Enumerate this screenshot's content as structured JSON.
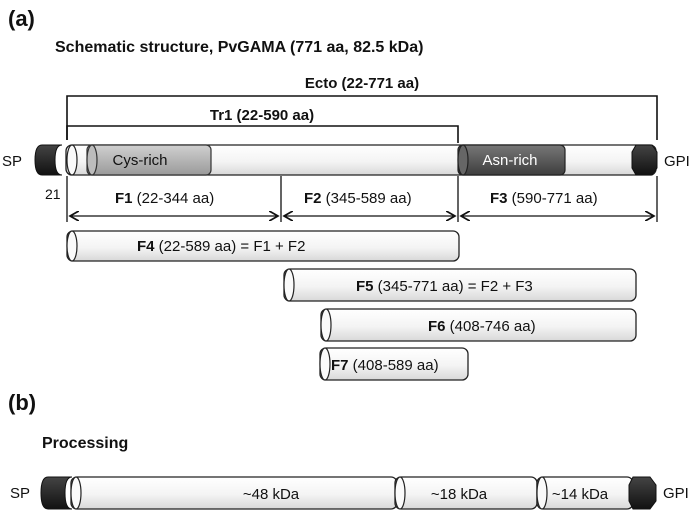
{
  "panel_a": {
    "label": "(a)",
    "title": "Schematic structure, PvGAMA (771 aa, 82.5 kDa)",
    "ecto_label": "Ecto (22-771 aa)",
    "tr1_label": "Tr1 (22-590 aa)",
    "sp_label": "SP",
    "gpi_label": "GPI",
    "pos_label": "21",
    "domains": {
      "cys_rich": "Cys-rich",
      "asn_rich": "Asn-rich"
    },
    "fragments": {
      "f1": {
        "name": "F1",
        "range": " (22-344 aa)"
      },
      "f2": {
        "name": "F2",
        "range": " (345-589 aa)"
      },
      "f3": {
        "name": "F3",
        "range": " (590-771 aa)"
      },
      "f4": {
        "name": "F4",
        "range": " (22-589 aa) = F1 + F2"
      },
      "f5": {
        "name": "F5",
        "range": " (345-771 aa) = F2 + F3"
      },
      "f6": {
        "name": "F6",
        "range": " (408-746 aa)"
      },
      "f7": {
        "name": "F7",
        "range": " (408-589 aa)"
      }
    }
  },
  "panel_b": {
    "label": "(b)",
    "title": "Processing",
    "sp_label": "SP",
    "gpi_label": "GPI",
    "segments": [
      "~48 kDa",
      "~18 kDa",
      "~14 kDa"
    ]
  },
  "colors": {
    "cys_rich": "#b0b0b0",
    "asn_rich": "#5a5a5a",
    "caps": "#222222",
    "bar_fill": "#f5f5f5"
  }
}
